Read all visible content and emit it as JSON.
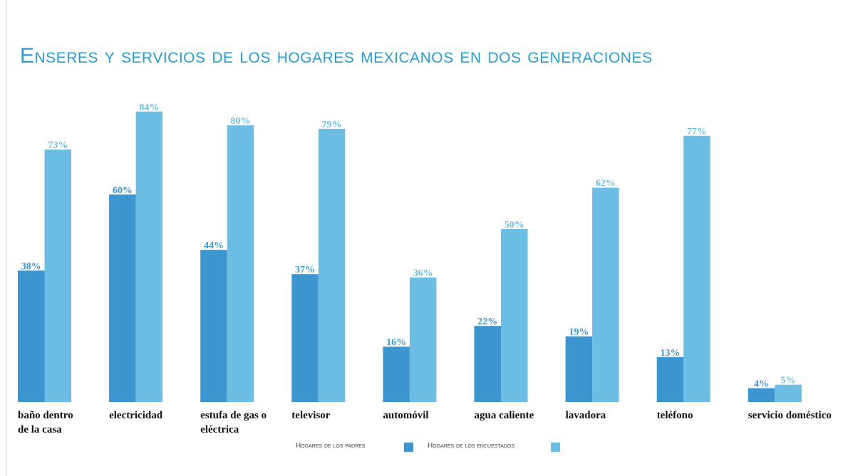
{
  "chart_data": {
    "type": "bar",
    "title": "Enseres y servicios de los hogares mexicanos en dos generaciones",
    "categories": [
      "baño dentro de la casa",
      "electricidad",
      "estufa de gas o eléctrica",
      "televisor",
      "automóvil",
      "agua caliente",
      "lavadora",
      "teléfono",
      "servicio doméstico"
    ],
    "series": [
      {
        "name": "Hogares de los padres",
        "color": "#3d95cf",
        "values": [
          38,
          60,
          44,
          37,
          16,
          22,
          19,
          13,
          4
        ],
        "value_labels": [
          "38%",
          "60%",
          "44%",
          "37%",
          "16%",
          "22%",
          "19%",
          "13%",
          "4%"
        ]
      },
      {
        "name": "Hogares de los encuestados",
        "color": "#6cbde3",
        "values": [
          73,
          84,
          80,
          79,
          36,
          50,
          62,
          77,
          5
        ],
        "value_labels": [
          "73%",
          "84%",
          "80%",
          "79%",
          "36%",
          "50%",
          "62%",
          "77%",
          "5%"
        ]
      }
    ]
  }
}
